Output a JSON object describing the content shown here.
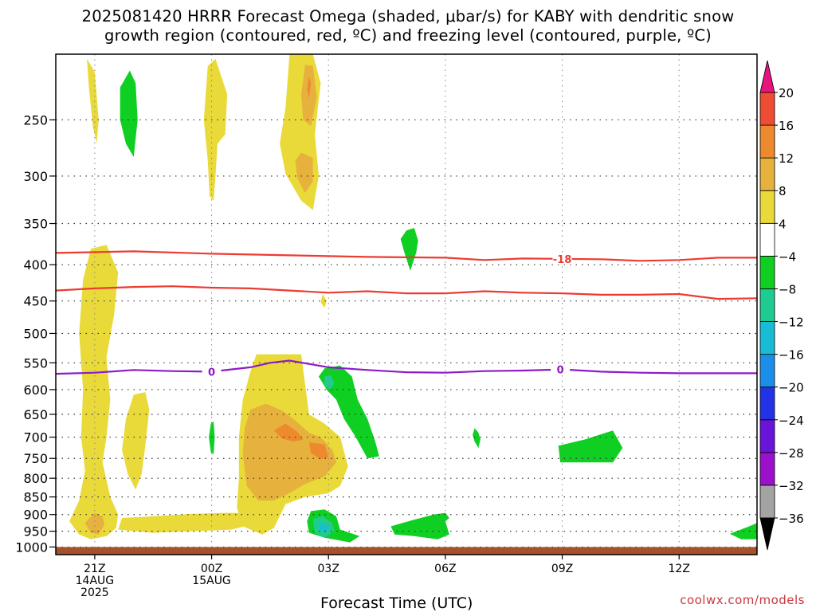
{
  "title": {
    "line1": "2025081420 HRRR Forecast Omega (shaded, μbar/s) for KABY with dendritic snow",
    "line2": "growth region (contoured, red, ºC) and freezing level (contoured, purple, ºC)"
  },
  "watermark": "coolwx.com/models",
  "chart_data": {
    "type": "heatmap",
    "title": "2025081420 HRRR Forecast Omega (shaded, μbar/s) for KABY with dendritic snow growth region (contoured, red, ºC) and freezing level (contoured, purple, ºC)",
    "xlabel": "Forecast Time (UTC)",
    "ylabel": "",
    "x_unit": "hours from 14AUG 2025 20Z",
    "xlim": [
      20,
      38
    ],
    "y_scale": "log",
    "ylim": [
      1025,
      202
    ],
    "y_ticks": [
      250,
      300,
      350,
      400,
      450,
      500,
      550,
      600,
      650,
      700,
      750,
      800,
      850,
      900,
      950,
      1000
    ],
    "x_ticks": [
      {
        "x": 21,
        "lines": [
          "21Z",
          "14AUG",
          "2025"
        ]
      },
      {
        "x": 24,
        "lines": [
          "00Z",
          "15AUG"
        ]
      },
      {
        "x": 27,
        "lines": [
          "03Z"
        ]
      },
      {
        "x": 30,
        "lines": [
          "06Z"
        ]
      },
      {
        "x": 33,
        "lines": [
          "09Z"
        ]
      },
      {
        "x": 36,
        "lines": [
          "12Z"
        ]
      }
    ],
    "grid": true,
    "colorbar": {
      "levels": [
        -36,
        -32,
        -28,
        -24,
        -20,
        -16,
        -12,
        -8,
        -4,
        4,
        8,
        12,
        16,
        20
      ],
      "colors": [
        "#a3a3a3",
        "#9b10cb",
        "#6b14d9",
        "#2432e6",
        "#1a8ee8",
        "#18bcd4",
        "#1ecc92",
        "#0fcf23",
        "#ffffff",
        "#e9da3a",
        "#e6b13c",
        "#ec8a2d",
        "#ef4d33",
        "#e61a8a"
      ],
      "under_color": "#000000",
      "over_color": "#e6147c",
      "labels": [
        "20",
        "16",
        "12",
        "8",
        "4",
        "−4",
        "−8",
        "−12",
        "−16",
        "−20",
        "−24",
        "−28",
        "−32",
        "−36"
      ]
    },
    "omega_regions": [
      {
        "level": 4,
        "points": [
          [
            20.8,
            205
          ],
          [
            21.0,
            214
          ],
          [
            21.1,
            250
          ],
          [
            21.05,
            270
          ],
          [
            20.95,
            255
          ],
          [
            20.85,
            225
          ]
        ]
      },
      {
        "level": -8,
        "points": [
          [
            21.65,
            225
          ],
          [
            21.9,
            213
          ],
          [
            22.05,
            222
          ],
          [
            22.1,
            250
          ],
          [
            22.0,
            282
          ],
          [
            21.8,
            270
          ],
          [
            21.65,
            250
          ]
        ]
      },
      {
        "level": 4,
        "points": [
          [
            23.9,
            210
          ],
          [
            24.1,
            205
          ],
          [
            24.4,
            230
          ],
          [
            24.35,
            262
          ],
          [
            24.15,
            270
          ],
          [
            24.1,
            300
          ],
          [
            24.05,
            325
          ],
          [
            23.95,
            320
          ],
          [
            23.9,
            285
          ],
          [
            23.8,
            250
          ]
        ]
      },
      {
        "level": 4,
        "points": [
          [
            26.0,
            202
          ],
          [
            26.6,
            202
          ],
          [
            26.8,
            222
          ],
          [
            26.65,
            262
          ],
          [
            26.75,
            300
          ],
          [
            26.6,
            335
          ],
          [
            26.3,
            325
          ],
          [
            25.9,
            298
          ],
          [
            25.75,
            270
          ],
          [
            25.9,
            240
          ]
        ]
      },
      {
        "level": 8,
        "points": [
          [
            26.4,
            209
          ],
          [
            26.6,
            210
          ],
          [
            26.7,
            232
          ],
          [
            26.55,
            255
          ],
          [
            26.35,
            250
          ],
          [
            26.3,
            230
          ]
        ]
      },
      {
        "level": 12,
        "points": [
          [
            26.5,
            217
          ],
          [
            26.55,
            222
          ],
          [
            26.5,
            233
          ],
          [
            26.45,
            226
          ]
        ]
      },
      {
        "level": 8,
        "points": [
          [
            26.3,
            278
          ],
          [
            26.6,
            283
          ],
          [
            26.6,
            305
          ],
          [
            26.4,
            317
          ],
          [
            26.2,
            302
          ],
          [
            26.15,
            285
          ]
        ]
      },
      {
        "level": -8,
        "points": [
          [
            29.0,
            358
          ],
          [
            29.2,
            355
          ],
          [
            29.3,
            370
          ],
          [
            29.25,
            385
          ],
          [
            29.1,
            408
          ],
          [
            28.95,
            385
          ],
          [
            28.85,
            368
          ]
        ]
      },
      {
        "level": 4,
        "points": [
          [
            20.9,
            380
          ],
          [
            21.3,
            375
          ],
          [
            21.6,
            410
          ],
          [
            21.5,
            470
          ],
          [
            21.3,
            540
          ],
          [
            21.4,
            620
          ],
          [
            21.3,
            700
          ],
          [
            21.2,
            760
          ],
          [
            21.4,
            850
          ],
          [
            21.6,
            900
          ],
          [
            21.55,
            940
          ],
          [
            21.3,
            965
          ],
          [
            20.9,
            975
          ],
          [
            20.6,
            960
          ],
          [
            20.35,
            920
          ],
          [
            20.6,
            860
          ],
          [
            20.75,
            780
          ],
          [
            20.65,
            700
          ],
          [
            20.7,
            600
          ],
          [
            20.6,
            500
          ],
          [
            20.7,
            420
          ]
        ]
      },
      {
        "level": 8,
        "points": [
          [
            21.0,
            895
          ],
          [
            21.2,
            905
          ],
          [
            21.25,
            930
          ],
          [
            21.1,
            960
          ],
          [
            20.9,
            955
          ],
          [
            20.75,
            925
          ]
        ]
      },
      {
        "level": 4,
        "points": [
          [
            22.0,
            610
          ],
          [
            22.3,
            605
          ],
          [
            22.4,
            640
          ],
          [
            22.3,
            720
          ],
          [
            22.2,
            790
          ],
          [
            22.05,
            830
          ],
          [
            21.85,
            790
          ],
          [
            21.7,
            730
          ],
          [
            21.8,
            660
          ]
        ]
      },
      {
        "level": -8,
        "points": [
          [
            23.98,
            670
          ],
          [
            24.05,
            665
          ],
          [
            24.08,
            700
          ],
          [
            24.05,
            740
          ],
          [
            23.98,
            735
          ],
          [
            23.93,
            700
          ]
        ]
      },
      {
        "level": 4,
        "points": [
          [
            21.7,
            910
          ],
          [
            22.5,
            905
          ],
          [
            23.5,
            898
          ],
          [
            24.3,
            895
          ],
          [
            25.0,
            895
          ],
          [
            25.4,
            920
          ],
          [
            24.5,
            945
          ],
          [
            23.5,
            950
          ],
          [
            22.5,
            955
          ],
          [
            21.6,
            945
          ]
        ]
      },
      {
        "level": 4,
        "points": [
          [
            25.15,
            535
          ],
          [
            26.3,
            535
          ],
          [
            26.4,
            590
          ],
          [
            26.5,
            650
          ],
          [
            26.9,
            670
          ],
          [
            27.3,
            700
          ],
          [
            27.5,
            770
          ],
          [
            27.3,
            820
          ],
          [
            27.0,
            840
          ],
          [
            26.4,
            850
          ],
          [
            25.9,
            870
          ],
          [
            25.6,
            940
          ],
          [
            25.3,
            960
          ],
          [
            24.8,
            935
          ],
          [
            24.65,
            880
          ],
          [
            24.7,
            800
          ],
          [
            24.7,
            700
          ],
          [
            24.8,
            620
          ],
          [
            25.0,
            565
          ]
        ]
      },
      {
        "level": 8,
        "points": [
          [
            25.0,
            640
          ],
          [
            25.4,
            628
          ],
          [
            25.8,
            642
          ],
          [
            26.1,
            660
          ],
          [
            26.5,
            690
          ],
          [
            26.8,
            700
          ],
          [
            27.1,
            730
          ],
          [
            27.2,
            760
          ],
          [
            26.9,
            795
          ],
          [
            26.4,
            815
          ],
          [
            26.0,
            840
          ],
          [
            25.6,
            860
          ],
          [
            25.2,
            860
          ],
          [
            24.9,
            820
          ],
          [
            24.8,
            740
          ],
          [
            24.85,
            680
          ]
        ]
      },
      {
        "level": 12,
        "points": [
          [
            25.6,
            685
          ],
          [
            25.9,
            670
          ],
          [
            26.2,
            688
          ],
          [
            26.35,
            706
          ],
          [
            26.1,
            710
          ],
          [
            25.8,
            703
          ]
        ]
      },
      {
        "level": 12,
        "points": [
          [
            26.5,
            712
          ],
          [
            26.9,
            717
          ],
          [
            27.0,
            747
          ],
          [
            26.8,
            752
          ],
          [
            26.55,
            737
          ]
        ]
      },
      {
        "level": 4,
        "points": [
          [
            26.85,
            440
          ],
          [
            26.95,
            450
          ],
          [
            26.9,
            460
          ],
          [
            26.8,
            452
          ]
        ]
      },
      {
        "level": -8,
        "points": [
          [
            26.9,
            560
          ],
          [
            27.3,
            555
          ],
          [
            27.6,
            575
          ],
          [
            27.75,
            620
          ],
          [
            28.0,
            660
          ],
          [
            28.2,
            710
          ],
          [
            28.3,
            745
          ],
          [
            28.0,
            750
          ],
          [
            27.7,
            700
          ],
          [
            27.4,
            660
          ],
          [
            27.2,
            620
          ],
          [
            26.95,
            600
          ],
          [
            26.75,
            575
          ]
        ]
      },
      {
        "level": -12,
        "points": [
          [
            26.9,
            575
          ],
          [
            27.05,
            572
          ],
          [
            27.15,
            588
          ],
          [
            27.05,
            600
          ],
          [
            26.9,
            592
          ]
        ]
      },
      {
        "level": -8,
        "points": [
          [
            27.65,
            660
          ],
          [
            27.8,
            665
          ],
          [
            27.85,
            690
          ],
          [
            27.7,
            700
          ]
        ]
      },
      {
        "level": -8,
        "points": [
          [
            30.75,
            680
          ],
          [
            30.85,
            690
          ],
          [
            30.9,
            705
          ],
          [
            30.85,
            725
          ],
          [
            30.75,
            710
          ],
          [
            30.7,
            695
          ]
        ]
      },
      {
        "level": -8,
        "points": [
          [
            32.9,
            720
          ],
          [
            33.6,
            705
          ],
          [
            34.3,
            685
          ],
          [
            34.55,
            725
          ],
          [
            34.3,
            760
          ],
          [
            33.9,
            760
          ],
          [
            32.95,
            760
          ]
        ]
      },
      {
        "level": -8,
        "points": [
          [
            26.55,
            890
          ],
          [
            26.9,
            885
          ],
          [
            27.2,
            905
          ],
          [
            27.3,
            945
          ],
          [
            27.8,
            965
          ],
          [
            27.55,
            985
          ],
          [
            26.9,
            970
          ],
          [
            26.5,
            955
          ],
          [
            26.45,
            920
          ]
        ]
      },
      {
        "level": -12,
        "points": [
          [
            26.6,
            913
          ],
          [
            26.85,
            905
          ],
          [
            27.1,
            925
          ],
          [
            27.15,
            950
          ],
          [
            26.9,
            970
          ],
          [
            26.65,
            955
          ]
        ]
      },
      {
        "level": -16,
        "points": [
          [
            26.75,
            930
          ],
          [
            26.9,
            928
          ],
          [
            27.0,
            940
          ],
          [
            26.9,
            952
          ],
          [
            26.78,
            945
          ]
        ]
      },
      {
        "level": -8,
        "points": [
          [
            28.6,
            935
          ],
          [
            29.2,
            915
          ],
          [
            29.7,
            900
          ],
          [
            30.0,
            895
          ],
          [
            30.1,
            910
          ],
          [
            30.0,
            920
          ],
          [
            30.1,
            960
          ],
          [
            29.8,
            975
          ],
          [
            29.2,
            965
          ],
          [
            28.7,
            960
          ]
        ]
      },
      {
        "level": -8,
        "points": [
          [
            37.3,
            958
          ],
          [
            37.8,
            935
          ],
          [
            38.0,
            925
          ],
          [
            38.0,
            975
          ],
          [
            37.6,
            975
          ]
        ]
      }
    ],
    "isotherms": [
      {
        "name": "dendritic snow growth region",
        "label_values": [
          "-18"
        ],
        "color": "#ec3b33",
        "label_at_x": 33.0,
        "x": [
          20,
          22,
          24,
          26,
          28,
          30,
          31,
          32,
          34,
          35,
          36,
          37,
          38
        ],
        "y": [
          385,
          383,
          386,
          388,
          390,
          391,
          394,
          392,
          393,
          395,
          394,
          391,
          391
        ]
      },
      {
        "name": "dendritic snow growth region",
        "label_values": [],
        "color": "#ec3b33",
        "x": [
          20,
          21,
          22,
          23,
          24,
          25,
          26,
          27,
          28,
          29,
          30,
          31,
          32,
          33,
          34,
          35,
          36,
          37,
          38
        ],
        "y": [
          435,
          432,
          430,
          429,
          431,
          432,
          435,
          438,
          436,
          439,
          439,
          436,
          438,
          439,
          441,
          441,
          440,
          447,
          446
        ]
      },
      {
        "name": "freezing level",
        "label_values": [
          "0",
          "0"
        ],
        "color": "#8c1bc6",
        "label_at_x": [
          24.0,
          32.95
        ],
        "x": [
          20,
          21,
          22,
          23,
          24,
          25,
          25.5,
          26,
          27,
          28,
          29,
          30,
          31,
          32,
          33,
          34,
          35,
          36,
          37,
          38
        ],
        "y": [
          570,
          568,
          563,
          565,
          566,
          558,
          550,
          546,
          558,
          563,
          567,
          568,
          565,
          564,
          562,
          566,
          568,
          569,
          569,
          569
        ]
      }
    ],
    "surface_bar": {
      "color": "#a5512b",
      "ylim": [
        1000,
        1025
      ]
    }
  }
}
